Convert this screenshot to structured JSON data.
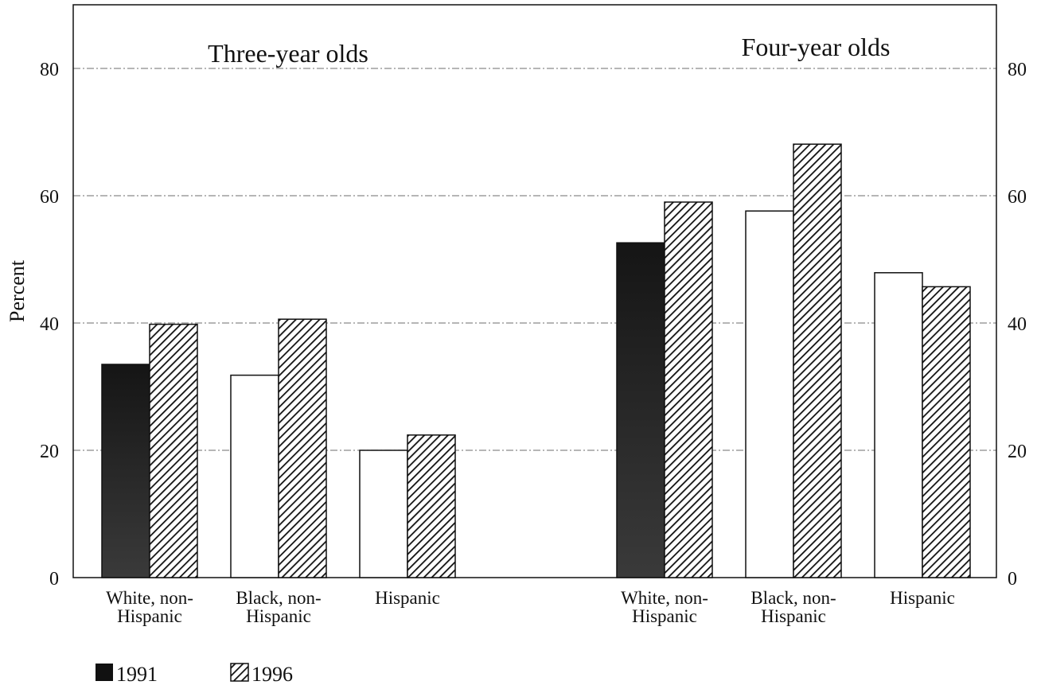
{
  "chart_data": {
    "type": "bar",
    "ylabel": "Percent",
    "ylim": [
      0,
      90
    ],
    "yticks": [
      0,
      20,
      40,
      60,
      80
    ],
    "grid": true,
    "legend_placement": "bottom-left",
    "groups": [
      {
        "title": "Three-year olds",
        "categories": [
          [
            "White, non-",
            "Hispanic"
          ],
          [
            "Black, non-",
            "Hispanic"
          ],
          [
            "Hispanic"
          ]
        ],
        "series": [
          {
            "name": "1991",
            "values": [
              33.5,
              31.8,
              20.0
            ]
          },
          {
            "name": "1996",
            "values": [
              39.8,
              40.6,
              22.4
            ]
          }
        ]
      },
      {
        "title": "Four-year olds",
        "categories": [
          [
            "White, non-",
            "Hispanic"
          ],
          [
            "Black, non-",
            "Hispanic"
          ],
          [
            "Hispanic"
          ]
        ],
        "series": [
          {
            "name": "1991",
            "values": [
              52.6,
              57.6,
              47.9
            ]
          },
          {
            "name": "1996",
            "values": [
              59.0,
              68.1,
              45.7
            ]
          }
        ]
      }
    ],
    "legend": [
      {
        "name": "1991",
        "swatch": "solid-black"
      },
      {
        "name": "1996",
        "swatch": "diagonal-hatch"
      }
    ]
  }
}
